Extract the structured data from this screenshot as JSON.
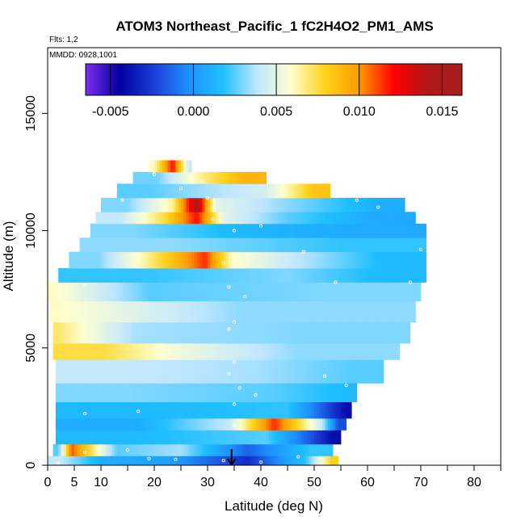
{
  "chart_data": {
    "type": "heatmap",
    "title": "ATOM3 Northeast_Pacific_1 fC2H4O2_PM1_AMS",
    "subtitle_flights": "Flts: 1,2",
    "subtitle_date": "MMDD: 0928,1001",
    "xlabel": "Latitude (deg N)",
    "ylabel": "Altitude (m)",
    "xlim": [
      0,
      85
    ],
    "ylim": [
      0,
      17800
    ],
    "x_ticks": [
      0,
      5,
      10,
      20,
      30,
      40,
      50,
      60,
      70,
      80
    ],
    "x_minor_ticks": [
      15,
      25,
      35,
      45,
      55,
      65,
      75,
      85
    ],
    "y_ticks": [
      0,
      5000,
      10000,
      15000
    ],
    "colorbar": {
      "range": [
        -0.0065,
        0.0162
      ],
      "ticks": [
        -0.005,
        0.0,
        0.005,
        0.01,
        0.015
      ],
      "tick_labels": [
        "-0.005",
        "0.000",
        "0.005",
        "0.010",
        "0.015"
      ],
      "colors": [
        "#7f2cf0",
        "#0000a0",
        "#1a3fd6",
        "#1e90ff",
        "#1fbfff",
        "#bfe6ff",
        "#ffffd0",
        "#ffd21a",
        "#ff9a00",
        "#ff0000",
        "#b01818",
        "#a51e1e"
      ]
    },
    "marker": {
      "x": 34.5,
      "direction": "down"
    },
    "bands": [
      {
        "y0": 0,
        "y1": 400,
        "x0": 0,
        "x1": 54.5,
        "segments": [
          [
            0,
            5,
            0.004
          ],
          [
            5,
            15,
            0.001
          ],
          [
            15,
            30,
            0.0005
          ],
          [
            30,
            45,
            -0.003
          ],
          [
            45,
            52,
            0.002
          ],
          [
            52,
            54.5,
            0.008
          ]
        ]
      },
      {
        "y0": 400,
        "y1": 900,
        "x0": 1,
        "x1": 53.5,
        "segments": [
          [
            1,
            3,
            0.0025
          ],
          [
            3,
            6,
            0.011
          ],
          [
            6,
            20,
            0.0025
          ],
          [
            20,
            30,
            0.0035
          ],
          [
            30,
            45,
            -0.0015
          ],
          [
            45,
            53.5,
            0.002
          ]
        ]
      },
      {
        "y0": 900,
        "y1": 1500,
        "x0": 1.5,
        "x1": 55,
        "segments": [
          [
            1.5,
            30,
            0.0015
          ],
          [
            30,
            52,
            0.0025
          ],
          [
            52,
            55,
            -0.004
          ]
        ]
      },
      {
        "y0": 1500,
        "y1": 2000,
        "x0": 1.5,
        "x1": 56,
        "segments": [
          [
            1.5,
            33,
            0.001
          ],
          [
            33,
            35,
            0.004
          ],
          [
            35,
            50,
            0.0115
          ],
          [
            50,
            53,
            0.004
          ],
          [
            53,
            56,
            -0.002
          ]
        ]
      },
      {
        "y0": 2000,
        "y1": 2700,
        "x0": 1.5,
        "x1": 57,
        "segments": [
          [
            1.5,
            35,
            0.0015
          ],
          [
            35,
            55,
            0.002
          ],
          [
            55,
            57,
            -0.004
          ]
        ]
      },
      {
        "y0": 2700,
        "y1": 3500,
        "x0": 1.5,
        "x1": 58,
        "segments": [
          [
            1.5,
            30,
            0.003
          ],
          [
            30,
            55,
            0.0025
          ],
          [
            55,
            58,
            0.0015
          ]
        ]
      },
      {
        "y0": 3500,
        "y1": 4500,
        "x0": 1.5,
        "x1": 63,
        "segments": [
          [
            1.5,
            28,
            0.004
          ],
          [
            28,
            50,
            0.0035
          ],
          [
            50,
            63,
            0.0025
          ]
        ]
      },
      {
        "y0": 4500,
        "y1": 5200,
        "x0": 1,
        "x1": 66,
        "segments": [
          [
            1,
            20,
            0.0075
          ],
          [
            20,
            27,
            0.0055
          ],
          [
            27,
            66,
            0.0032
          ]
        ]
      },
      {
        "y0": 5200,
        "y1": 6100,
        "x0": 1,
        "x1": 68,
        "segments": [
          [
            1,
            3,
            0.007
          ],
          [
            3,
            30,
            0.0035
          ],
          [
            30,
            68,
            0.003
          ]
        ]
      },
      {
        "y0": 6100,
        "y1": 7000,
        "x0": 0.5,
        "x1": 69,
        "segments": [
          [
            0.5,
            3,
            0.006
          ],
          [
            3,
            69,
            0.0032
          ]
        ]
      },
      {
        "y0": 7000,
        "y1": 7800,
        "x0": 0,
        "x1": 70,
        "segments": [
          [
            0,
            3,
            0.006
          ],
          [
            3,
            35,
            0.0025
          ],
          [
            35,
            70,
            0.003
          ]
        ]
      },
      {
        "y0": 7800,
        "y1": 8400,
        "x0": 2,
        "x1": 71,
        "segments": [
          [
            2,
            35,
            0.002
          ],
          [
            35,
            55,
            0.003
          ],
          [
            55,
            71,
            0.0015
          ]
        ]
      },
      {
        "y0": 8400,
        "y1": 9100,
        "x0": 4,
        "x1": 71,
        "segments": [
          [
            4,
            15,
            0.003
          ],
          [
            15,
            22,
            0.0065
          ],
          [
            22,
            27,
            0.009
          ],
          [
            27,
            32,
            0.0115
          ],
          [
            32,
            37,
            0.006
          ],
          [
            37,
            55,
            0.004
          ],
          [
            55,
            71,
            0.0015
          ]
        ]
      },
      {
        "y0": 9100,
        "y1": 9700,
        "x0": 6,
        "x1": 71,
        "segments": [
          [
            6,
            40,
            0.0032
          ],
          [
            40,
            71,
            0.002
          ]
        ]
      },
      {
        "y0": 9700,
        "y1": 10300,
        "x0": 8,
        "x1": 71,
        "segments": [
          [
            8,
            25,
            0.003
          ],
          [
            25,
            45,
            0.0015
          ],
          [
            45,
            71,
            0.0008
          ]
        ]
      },
      {
        "y0": 10300,
        "y1": 10800,
        "x0": 9,
        "x1": 69,
        "segments": [
          [
            9,
            18,
            0.004
          ],
          [
            18,
            26,
            0.0075
          ],
          [
            26,
            30,
            0.012
          ],
          [
            30,
            36,
            0.005
          ],
          [
            36,
            54,
            0.0025
          ],
          [
            54,
            69,
            0.0008
          ]
        ]
      },
      {
        "y0": 10800,
        "y1": 11400,
        "x0": 10,
        "x1": 67,
        "segments": [
          [
            10,
            20,
            0.003
          ],
          [
            20,
            27,
            0.0065
          ],
          [
            27,
            29,
            0.0145
          ],
          [
            29,
            34,
            0.005
          ],
          [
            34,
            58,
            0.003
          ],
          [
            58,
            67,
            0.001
          ]
        ]
      },
      {
        "y0": 11400,
        "y1": 12000,
        "x0": 13,
        "x1": 53,
        "segments": [
          [
            13,
            25,
            0.0025
          ],
          [
            25,
            35,
            0.0035
          ],
          [
            35,
            47,
            0.0045
          ],
          [
            47,
            53,
            0.0085
          ]
        ]
      },
      {
        "y0": 12000,
        "y1": 12500,
        "x0": 16,
        "x1": 41,
        "segments": [
          [
            16,
            25,
            0.0028
          ],
          [
            25,
            32,
            0.0065
          ],
          [
            32,
            41,
            0.009
          ]
        ]
      },
      {
        "y0": 12500,
        "y1": 13000,
        "x0": 19,
        "x1": 27,
        "segments": [
          [
            19,
            21,
            0.006
          ],
          [
            21,
            26,
            0.012
          ],
          [
            26,
            27,
            0.004
          ]
        ]
      }
    ],
    "points": [
      [
        2,
        80
      ],
      [
        7,
        550
      ],
      [
        15,
        650
      ],
      [
        19,
        280
      ],
      [
        24,
        250
      ],
      [
        33,
        200
      ],
      [
        40,
        130
      ],
      [
        47,
        360
      ],
      [
        7,
        2200
      ],
      [
        17,
        2300
      ],
      [
        35,
        1700
      ],
      [
        35,
        2600
      ],
      [
        36,
        3300
      ],
      [
        34,
        3900
      ],
      [
        34,
        5800
      ],
      [
        35,
        6100
      ],
      [
        35,
        4400
      ],
      [
        39,
        3000
      ],
      [
        52,
        3800
      ],
      [
        56,
        3400
      ],
      [
        34,
        7600
      ],
      [
        37,
        7200
      ],
      [
        7,
        7700
      ],
      [
        54,
        7800
      ],
      [
        68,
        7800
      ],
      [
        33,
        8600
      ],
      [
        48,
        9100
      ],
      [
        70,
        9200
      ],
      [
        31,
        10500
      ],
      [
        35,
        10000
      ],
      [
        40,
        10200
      ],
      [
        14,
        11300
      ],
      [
        25,
        11800
      ],
      [
        30,
        11400
      ],
      [
        58,
        11300
      ],
      [
        62,
        11000
      ],
      [
        68,
        10900
      ],
      [
        70,
        10600
      ],
      [
        20,
        12400
      ],
      [
        27,
        12300
      ],
      [
        29,
        12100
      ]
    ]
  }
}
